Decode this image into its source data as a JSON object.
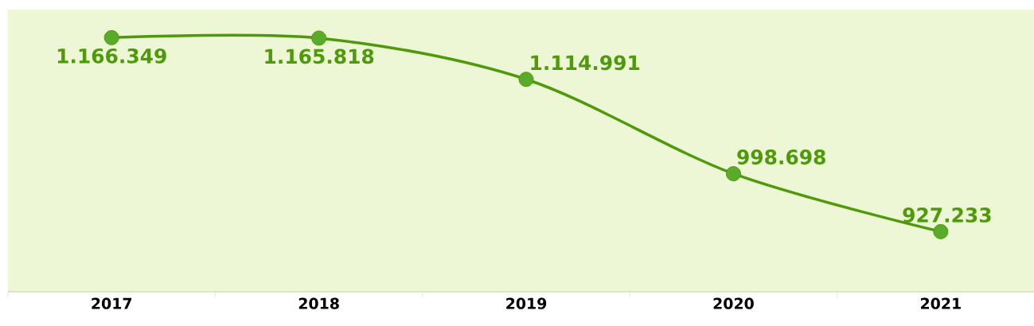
{
  "chart_data": {
    "type": "line",
    "categories": [
      "2017",
      "2018",
      "2019",
      "2020",
      "2021"
    ],
    "values": [
      1166349,
      1165818,
      1114991,
      998698,
      927233
    ],
    "value_labels": [
      "1.166.349",
      "1.165.818",
      "1.114.991",
      "998.698",
      "927.233"
    ],
    "color": "#4e9a0a",
    "marker": "circle",
    "line_style": "solid"
  }
}
